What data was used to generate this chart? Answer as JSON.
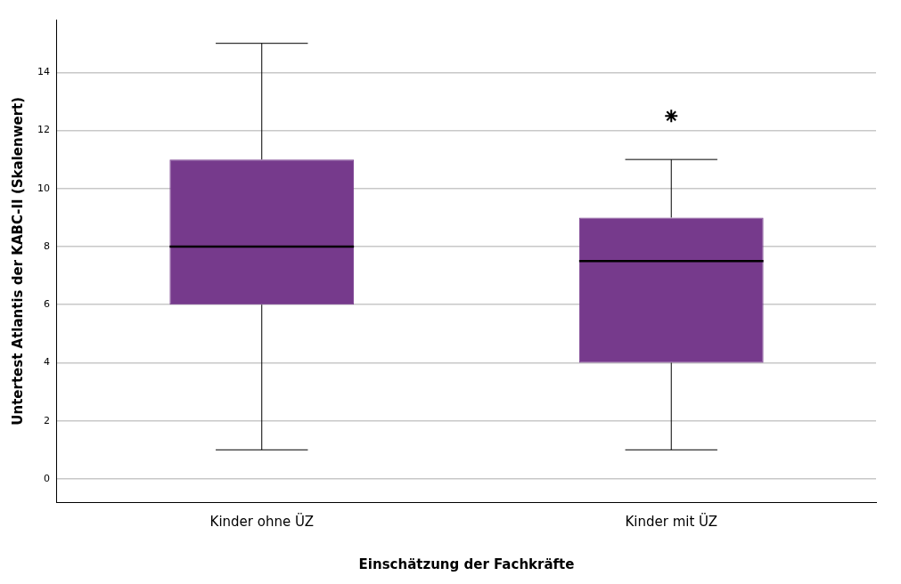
{
  "chart_data": {
    "type": "box",
    "xlabel": "Einschätzung der Fachkräfte",
    "ylabel": "Untertest Atlantis der KABC-II (Skalenwert)",
    "categories": [
      "Kinder ohne ÜZ",
      "Kinder mit ÜZ"
    ],
    "color": "#763a8c",
    "boxes": [
      {
        "low": 1,
        "q1": 6,
        "median": 8,
        "q3": 11,
        "high": 15
      },
      {
        "low": 1,
        "q1": 4,
        "median": 7.5,
        "q3": 9,
        "high": 11,
        "outliers": [
          12.5
        ]
      }
    ],
    "ylim": [
      -0.8,
      15.8
    ],
    "yticks": [
      0,
      2,
      4,
      6,
      8,
      10,
      12,
      14
    ],
    "grid": "y",
    "legend": false,
    "marker": "star"
  }
}
